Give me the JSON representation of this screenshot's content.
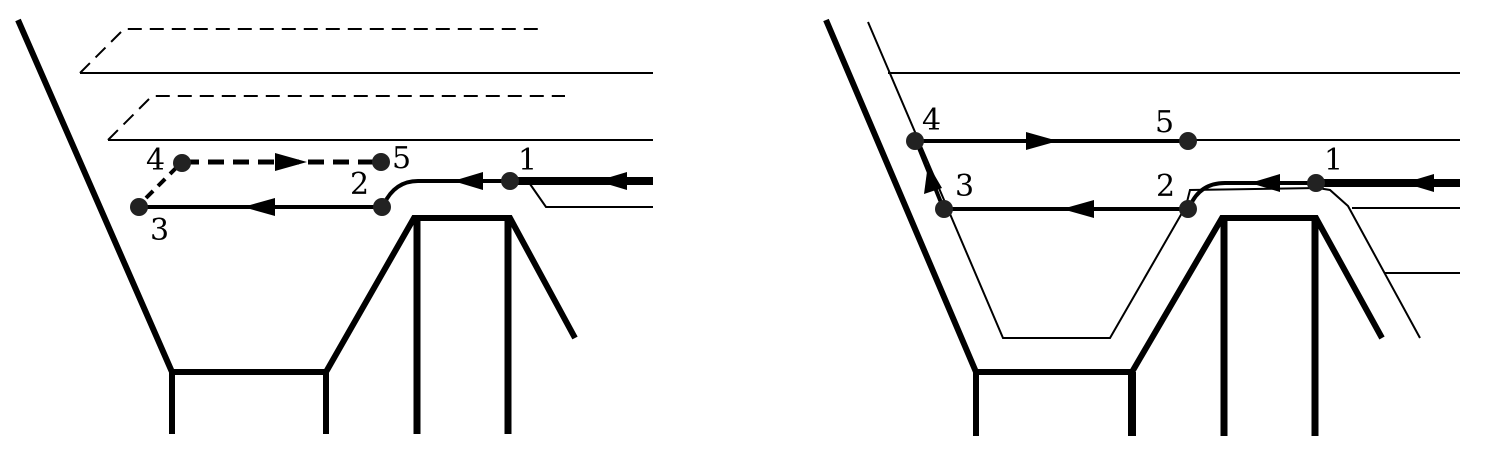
{
  "figure": {
    "line_color": "#000000",
    "background": "#ffffff"
  },
  "panels": [
    {
      "id": "left",
      "points": [
        {
          "id": "p1",
          "label": "1"
        },
        {
          "id": "p2",
          "label": "2"
        },
        {
          "id": "p3",
          "label": "3"
        },
        {
          "id": "p4",
          "label": "4"
        },
        {
          "id": "p5",
          "label": "5"
        }
      ],
      "path_segments": [
        {
          "from": "1",
          "to": "2",
          "style": "solid"
        },
        {
          "from": "2",
          "to": "3",
          "style": "solid"
        },
        {
          "from": "3",
          "to": "4",
          "style": "dashed"
        },
        {
          "from": "4",
          "to": "5",
          "style": "dashed"
        }
      ]
    },
    {
      "id": "right",
      "points": [
        {
          "id": "p1",
          "label": "1"
        },
        {
          "id": "p2",
          "label": "2"
        },
        {
          "id": "p3",
          "label": "3"
        },
        {
          "id": "p4",
          "label": "4"
        },
        {
          "id": "p5",
          "label": "5"
        }
      ],
      "path_segments": [
        {
          "from": "1",
          "to": "2",
          "style": "solid"
        },
        {
          "from": "2",
          "to": "3",
          "style": "solid"
        },
        {
          "from": "3",
          "to": "4",
          "style": "solid"
        },
        {
          "from": "4",
          "to": "5",
          "style": "solid"
        }
      ]
    }
  ]
}
